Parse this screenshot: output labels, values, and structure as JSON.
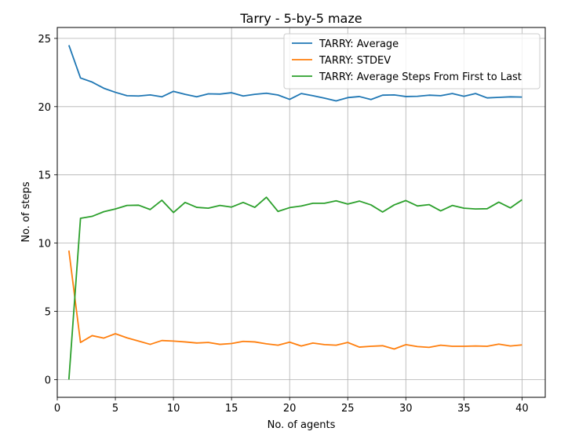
{
  "chart_data": {
    "type": "line",
    "title": "Tarry - 5-by-5 maze",
    "xlabel": "No. of agents",
    "ylabel": "No. of steps",
    "xlim": [
      0,
      42
    ],
    "ylim": [
      -1.3,
      25.8
    ],
    "xticks": [
      0,
      5,
      10,
      15,
      20,
      25,
      30,
      35,
      40
    ],
    "yticks": [
      0,
      5,
      10,
      15,
      20,
      25
    ],
    "grid": true,
    "legend_position": "top-right",
    "x": [
      1,
      2,
      3,
      4,
      5,
      6,
      7,
      8,
      9,
      10,
      11,
      12,
      13,
      14,
      15,
      16,
      17,
      18,
      19,
      20,
      21,
      22,
      23,
      24,
      25,
      26,
      27,
      28,
      29,
      30,
      31,
      32,
      33,
      34,
      35,
      36,
      37,
      38,
      39,
      40
    ],
    "series": [
      {
        "name": "TARRY: Average",
        "color": "#1f77b4",
        "values": [
          24.5,
          22.1,
          21.8,
          21.35,
          21.05,
          20.8,
          20.78,
          20.86,
          20.72,
          21.12,
          20.9,
          20.72,
          20.94,
          20.92,
          21.02,
          20.78,
          20.9,
          20.98,
          20.85,
          20.53,
          20.96,
          20.8,
          20.62,
          20.42,
          20.66,
          20.74,
          20.52,
          20.84,
          20.86,
          20.74,
          20.76,
          20.84,
          20.8,
          20.96,
          20.76,
          20.96,
          20.64,
          20.68,
          20.72,
          20.7
        ]
      },
      {
        "name": "TARRY: STDEV",
        "color": "#ff7f0e",
        "values": [
          9.45,
          2.72,
          3.22,
          3.04,
          3.36,
          3.06,
          2.82,
          2.58,
          2.86,
          2.82,
          2.76,
          2.68,
          2.72,
          2.58,
          2.64,
          2.8,
          2.76,
          2.62,
          2.52,
          2.74,
          2.46,
          2.68,
          2.56,
          2.52,
          2.72,
          2.38,
          2.44,
          2.48,
          2.24,
          2.56,
          2.42,
          2.36,
          2.52,
          2.44,
          2.44,
          2.46,
          2.44,
          2.6,
          2.46,
          2.54
        ]
      },
      {
        "name": "TARRY: Average Steps From First to Last",
        "color": "#2ca02c",
        "values": [
          0.0,
          11.82,
          11.96,
          12.3,
          12.5,
          12.76,
          12.78,
          12.46,
          13.14,
          12.24,
          12.98,
          12.62,
          12.56,
          12.76,
          12.64,
          12.98,
          12.62,
          13.36,
          12.32,
          12.6,
          12.72,
          12.92,
          12.92,
          13.1,
          12.86,
          13.08,
          12.8,
          12.28,
          12.8,
          13.12,
          12.72,
          12.82,
          12.36,
          12.76,
          12.56,
          12.5,
          12.52,
          13.0,
          12.58,
          13.18
        ]
      }
    ]
  }
}
